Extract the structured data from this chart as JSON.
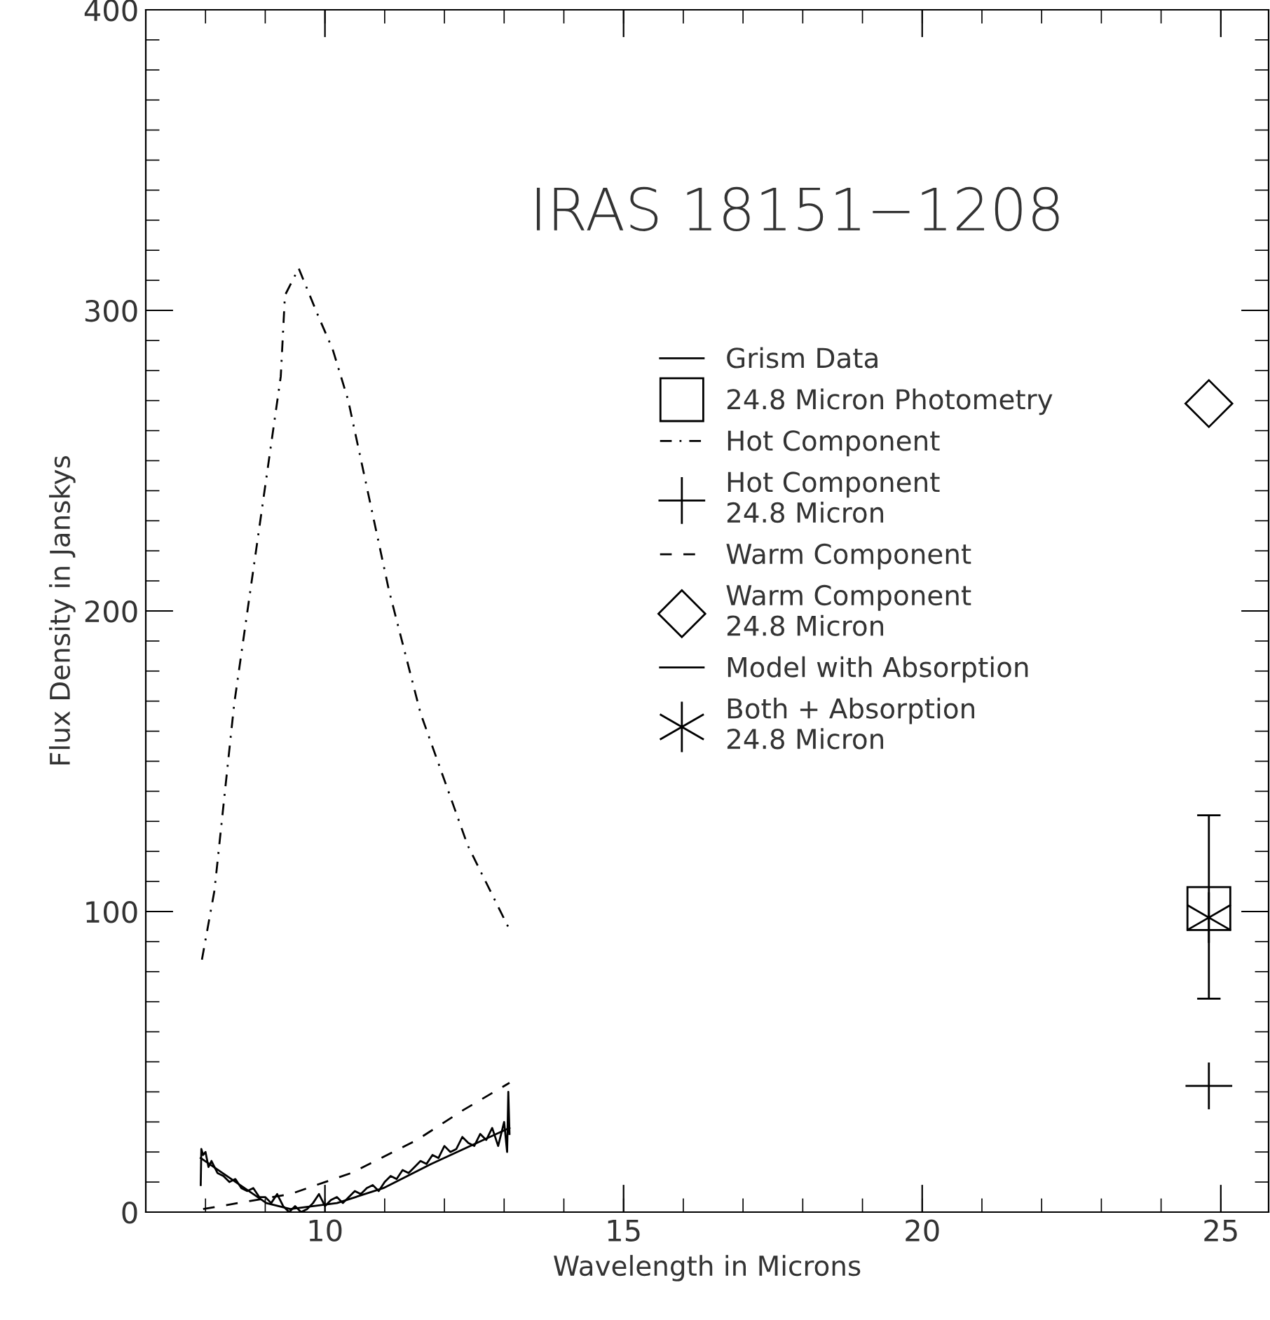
{
  "chart_data": {
    "type": "line",
    "title": "IRAS 18151−1208",
    "xlabel": "Wavelength in Microns",
    "ylabel": "Flux Density in Janskys",
    "xlim": [
      7,
      25.8
    ],
    "xticks": [
      10,
      15,
      20,
      25
    ],
    "ylim": [
      0,
      400
    ],
    "yticks": [
      0,
      100,
      200,
      300,
      400
    ],
    "grid": false,
    "legend": "right",
    "series": [
      {
        "name": "Grism Data",
        "line_style": "solid",
        "color": "#000000",
        "x": [
          7.92,
          7.93,
          7.96,
          8.0,
          8.05,
          8.1,
          8.2,
          8.3,
          8.4,
          8.5,
          8.6,
          8.7,
          8.8,
          8.9,
          9.0,
          9.1,
          9.2,
          9.3,
          9.4,
          9.5,
          9.6,
          9.7,
          9.8,
          9.9,
          10.0,
          10.1,
          10.2,
          10.3,
          10.4,
          10.5,
          10.6,
          10.7,
          10.8,
          10.9,
          11.0,
          11.1,
          11.2,
          11.3,
          11.4,
          11.5,
          11.6,
          11.7,
          11.8,
          11.9,
          12.0,
          12.1,
          12.2,
          12.3,
          12.4,
          12.5,
          12.6,
          12.7,
          12.8,
          12.9,
          13.0,
          13.05,
          13.07,
          13.09
        ],
        "values": [
          9,
          21,
          19,
          20,
          15,
          17,
          13,
          12,
          10,
          11,
          8,
          7,
          8,
          5,
          5,
          3,
          6,
          2,
          0,
          2,
          0,
          1,
          3,
          6,
          2,
          4,
          5,
          3,
          5,
          7,
          6,
          8,
          9,
          7,
          10,
          12,
          11,
          14,
          13,
          15,
          17,
          16,
          19,
          18,
          22,
          20,
          21,
          25,
          23,
          22,
          26,
          24,
          28,
          22,
          30,
          20,
          40,
          26
        ]
      },
      {
        "name": "24.8 Micron Photometry",
        "type": "scatter",
        "marker": "square",
        "color": "#000000",
        "x": [
          24.8
        ],
        "values": [
          101
        ],
        "errors": [
          [
            71,
            132
          ]
        ]
      },
      {
        "name": "Hot Component",
        "line_style": "dashdot",
        "color": "#000000",
        "x": [
          7.94,
          8.15,
          8.48,
          8.86,
          9.26,
          9.33,
          9.56,
          9.89,
          10.13,
          10.39,
          11.07,
          11.6,
          12.39,
          13.09
        ],
        "values": [
          84,
          107,
          169,
          222,
          278,
          305,
          314,
          298,
          287,
          270,
          207,
          166,
          122,
          94
        ]
      },
      {
        "name": "Hot Component\n24.8 Micron",
        "type": "scatter",
        "marker": "cross",
        "color": "#000000",
        "x": [
          24.8
        ],
        "values": [
          42
        ]
      },
      {
        "name": "Warm Component",
        "line_style": "dashed",
        "color": "#000000",
        "x": [
          7.96,
          9.42,
          10.44,
          11.54,
          12.32,
          13.09
        ],
        "values": [
          1,
          6,
          13,
          24,
          34,
          43
        ]
      },
      {
        "name": "Warm Component\n24.8 Micron",
        "type": "scatter",
        "marker": "diamond",
        "color": "#000000",
        "x": [
          24.8
        ],
        "values": [
          269
        ]
      },
      {
        "name": "Model with Absorption",
        "line_style": "solid",
        "color": "#000000",
        "x": [
          7.92,
          9.02,
          9.42,
          10.2,
          10.98,
          11.78,
          13.09
        ],
        "values": [
          18,
          3,
          1,
          3,
          8,
          16,
          28
        ]
      },
      {
        "name": "Both + Absorption\n24.8 Micron",
        "type": "scatter",
        "color": "#000000",
        "x": [
          24.8
        ],
        "values": [
          98
        ]
      }
    ]
  }
}
